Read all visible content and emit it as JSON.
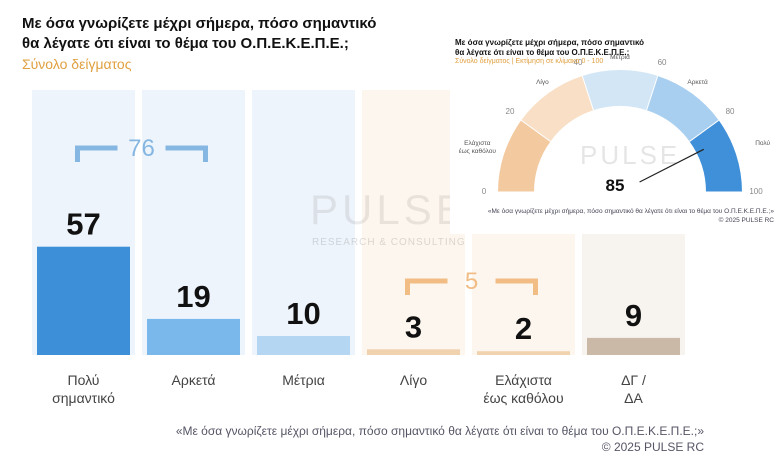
{
  "chart_data": [
    {
      "type": "bar",
      "title": "Με όσα γνωρίζετε μέχρι σήμερα, πόσο σημαντικό\nθα λέγατε ότι είναι το θέμα του  Ο.Π.Ε.Κ.Ε.Π.Ε.;",
      "subtitle": "Σύνολο δείγματος",
      "categories": [
        "Πολύ\nσημαντικό",
        "Αρκετά",
        "Μέτρια",
        "Λίγο",
        "Ελάχιστα\nέως καθόλου",
        "ΔΓ /\nΔΑ"
      ],
      "values": [
        57,
        19,
        10,
        3,
        2,
        9
      ],
      "colors": [
        "#3d8fd8",
        "#7ab8ec",
        "#b5d6f3",
        "#f1d2ae",
        "#f1d2ae",
        "#cbb9a8"
      ],
      "panel_colors": [
        "#eef4fb",
        "#eef4fb",
        "#eef4fb",
        "#fdf6ee",
        "#fdf6ee",
        "#f7f3ef"
      ],
      "annotations": [
        {
          "value": 76,
          "categories": [
            0,
            1
          ],
          "color": "#86b7e2"
        },
        {
          "value": 5,
          "categories": [
            3,
            4
          ],
          "color": "#f1bd85"
        }
      ],
      "watermark": "PULSE",
      "watermark_sub": "RESEARCH & CONSULTING",
      "note": "«Με όσα γνωρίζετε μέχρι σήμερα, πόσο σημαντικό θα λέγατε ότι είναι το θέμα του Ο.Π.Ε.Κ.Ε.Π.Ε.;»",
      "copyright": "©  2025  PULSE RC"
    },
    {
      "type": "gauge",
      "title": "Με όσα γνωρίζετε μέχρι σήμερα, πόσο σημαντικό\nθα λέγατε ότι είναι το θέμα του  Ο.Π.Ε.Κ.Ε.Π.Ε.;",
      "subtitle": "Σύνολο δείγματος  |  Εκτίμηση σε κλίμακα  0 - 100",
      "lim": [
        0,
        100
      ],
      "ticks": [
        0,
        20,
        40,
        60,
        80,
        100
      ],
      "bands": [
        {
          "label": "Ελάχιστα\nέως καθόλου",
          "from": 0,
          "to": 20,
          "color": "#f3c9a0"
        },
        {
          "label": "Λίγο",
          "from": 20,
          "to": 40,
          "color": "#f8dfc6"
        },
        {
          "label": "Μέτρια",
          "from": 40,
          "to": 60,
          "color": "#d3e6f6"
        },
        {
          "label": "Αρκετά",
          "from": 60,
          "to": 80,
          "color": "#a9cff0"
        },
        {
          "label": "Πολύ",
          "from": 80,
          "to": 100,
          "color": "#3f90d8"
        }
      ],
      "value": 85,
      "watermark": "PULSE",
      "note": "«Με όσα γνωρίζετε μέχρι σήμερα, πόσο σημαντικό θα λέγατε ότι είναι το θέμα του  Ο.Π.Ε.Κ.Ε.Π.Ε.;»",
      "copyright": "© 2025 PULSE RC"
    }
  ]
}
